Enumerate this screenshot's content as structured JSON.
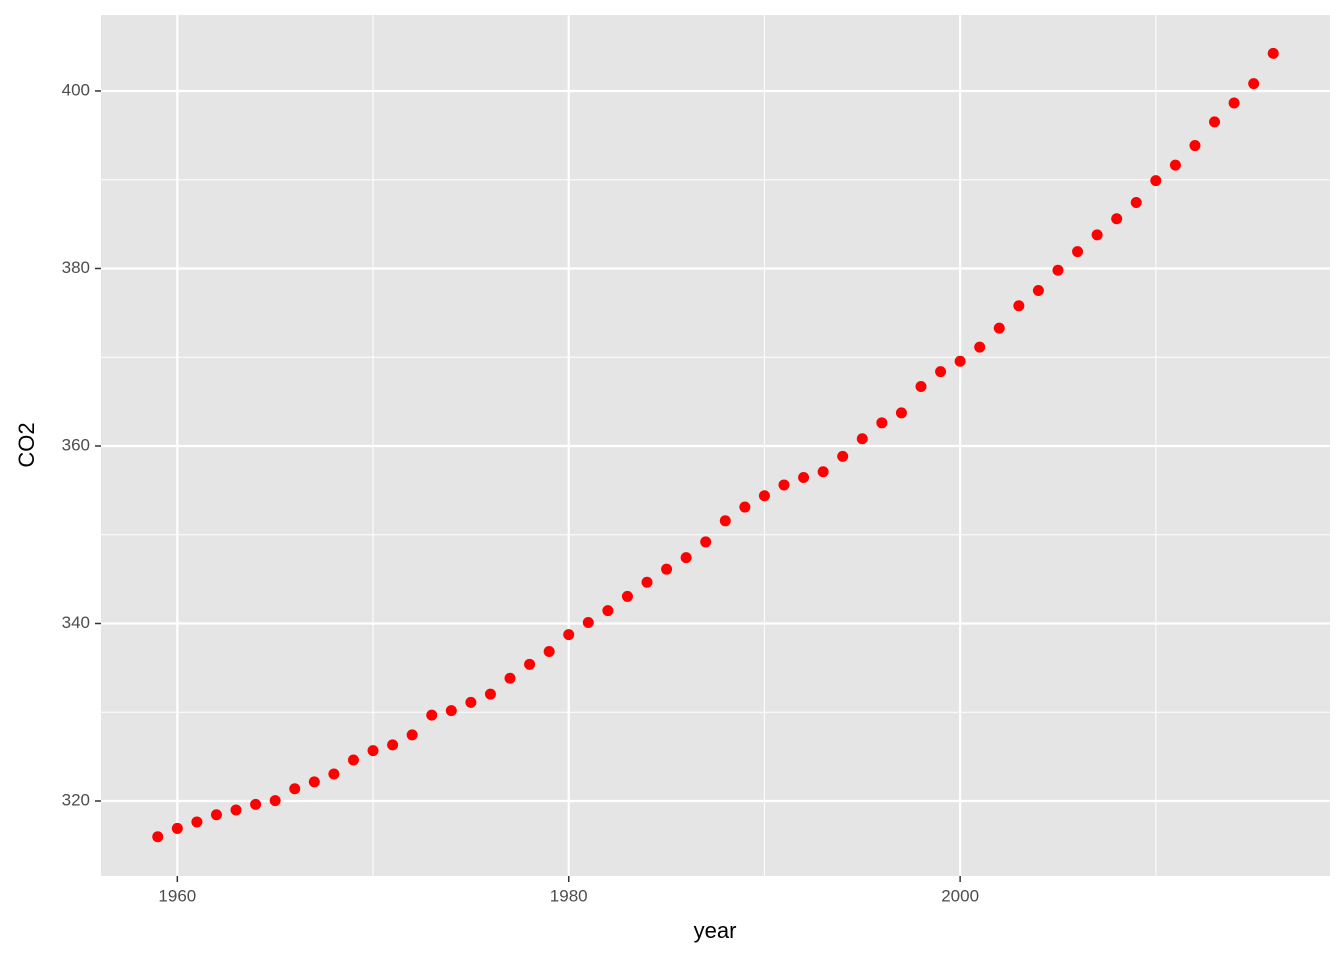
{
  "chart_data": {
    "type": "scatter",
    "x_label": "year",
    "y_label": "CO2",
    "color": "#ff0000",
    "x": [
      1959,
      1960,
      1961,
      1962,
      1963,
      1964,
      1965,
      1966,
      1967,
      1968,
      1969,
      1970,
      1971,
      1972,
      1973,
      1974,
      1975,
      1976,
      1977,
      1978,
      1979,
      1980,
      1981,
      1982,
      1983,
      1984,
      1985,
      1986,
      1987,
      1988,
      1989,
      1990,
      1991,
      1992,
      1993,
      1994,
      1995,
      1996,
      1997,
      1998,
      1999,
      2000,
      2001,
      2002,
      2003,
      2004,
      2005,
      2006,
      2007,
      2008,
      2009,
      2010,
      2011,
      2012,
      2013,
      2014,
      2015,
      2016
    ],
    "values": [
      315.97,
      316.91,
      317.64,
      318.45,
      318.99,
      319.62,
      320.04,
      321.38,
      322.16,
      323.04,
      324.62,
      325.68,
      326.32,
      327.45,
      329.68,
      330.18,
      331.11,
      332.04,
      333.83,
      335.4,
      336.84,
      338.75,
      340.11,
      341.45,
      343.05,
      344.65,
      346.12,
      347.42,
      349.19,
      351.57,
      353.12,
      354.39,
      355.61,
      356.45,
      357.1,
      358.83,
      360.82,
      362.61,
      363.73,
      366.7,
      368.38,
      369.55,
      371.14,
      373.28,
      375.8,
      377.52,
      379.8,
      381.9,
      383.79,
      385.6,
      387.43,
      389.9,
      391.65,
      393.85,
      396.52,
      398.65,
      400.83,
      404.24
    ],
    "xlim": [
      1956.1,
      2018.9
    ],
    "xticks": [
      1960,
      1980,
      2000
    ],
    "ylim": [
      311.55,
      408.56
    ],
    "yticks": [
      320,
      340,
      360,
      380,
      400
    ],
    "grid": true
  }
}
